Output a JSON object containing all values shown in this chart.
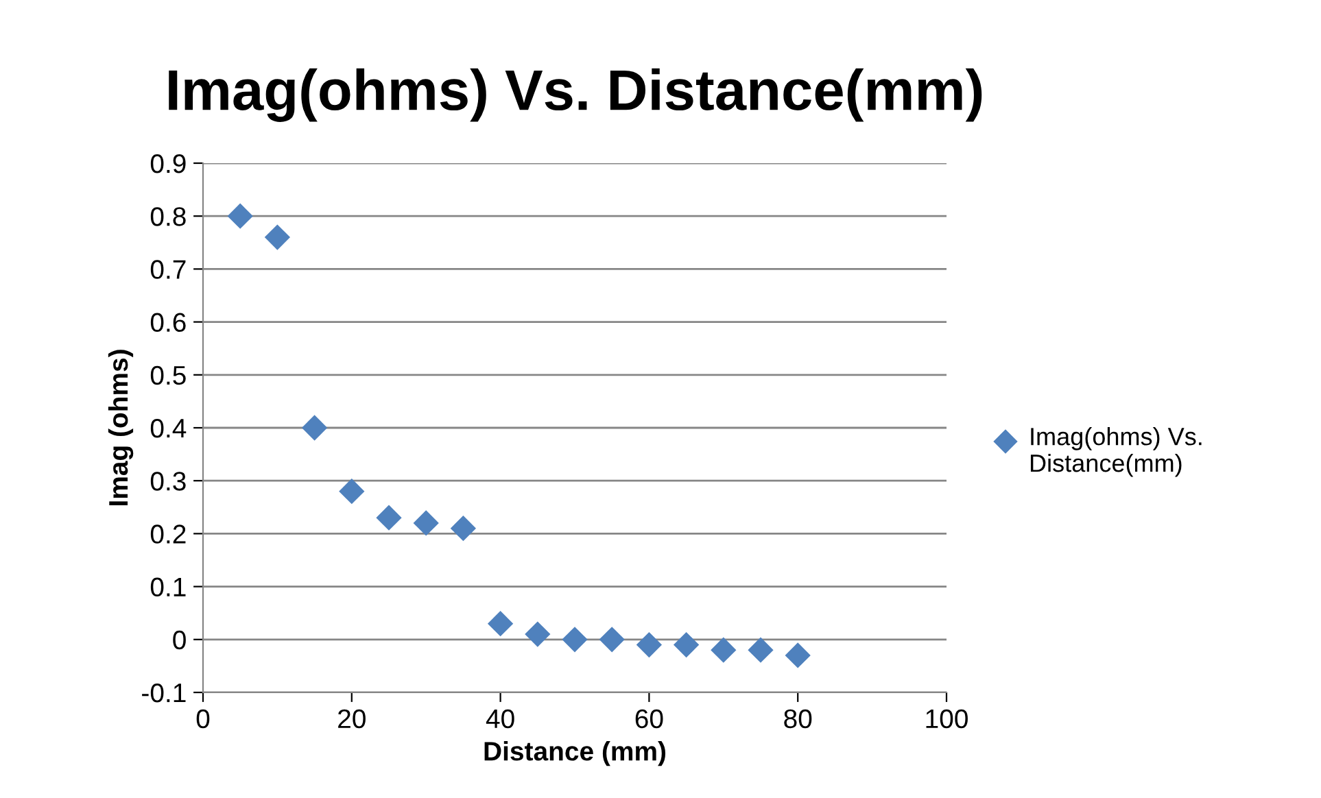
{
  "chart_data": {
    "type": "scatter",
    "title": "Imag(ohms) Vs. Distance(mm)",
    "xlabel": "Distance (mm)",
    "ylabel": "Imag (ohms)",
    "series": [
      {
        "name": "Imag(ohms) Vs. Distance(mm)",
        "color": "#4f81bd",
        "x": [
          5,
          10,
          15,
          20,
          25,
          30,
          35,
          40,
          45,
          50,
          55,
          60,
          65,
          70,
          75,
          80
        ],
        "values": [
          0.8,
          0.76,
          0.4,
          0.28,
          0.23,
          0.22,
          0.21,
          0.03,
          0.01,
          0.0,
          0.0,
          -0.01,
          -0.01,
          -0.02,
          -0.02,
          -0.03
        ]
      }
    ],
    "xlim": [
      0,
      100
    ],
    "xticks": [
      0,
      20,
      40,
      60,
      80,
      100
    ],
    "ylim": [
      -0.1,
      0.9
    ],
    "yticks": [
      {
        "value": -0.1,
        "label": "-0.1"
      },
      {
        "value": 0,
        "label": "0"
      },
      {
        "value": 0.1,
        "label": "0.1"
      },
      {
        "value": 0.2,
        "label": "0.2"
      },
      {
        "value": 0.3,
        "label": "0.3"
      },
      {
        "value": 0.4,
        "label": "0.4"
      },
      {
        "value": 0.5,
        "label": "0.5"
      },
      {
        "value": 0.6,
        "label": "0.6"
      },
      {
        "value": 0.7,
        "label": "0.7"
      },
      {
        "value": 0.8,
        "label": "0.8"
      },
      {
        "value": 0.9,
        "label": "0.9"
      }
    ],
    "grid": "y",
    "legend": "right",
    "marker": "diamond"
  }
}
